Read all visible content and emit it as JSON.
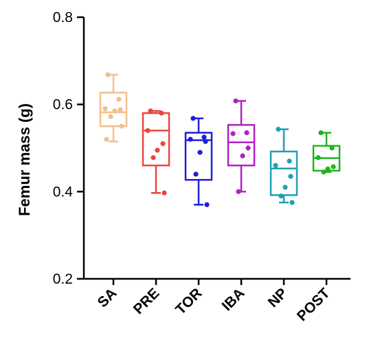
{
  "chart_data": {
    "type": "box",
    "ylabel": "Femur mass (g)",
    "ylim": [
      0.2,
      0.8
    ],
    "yticks": [
      "0.2",
      "0.4",
      "0.6",
      "0.8"
    ],
    "categories": [
      "SA",
      "PRE",
      "TOR",
      "IBA",
      "NP",
      "POST"
    ],
    "colors": [
      "#f2c08a",
      "#e8473e",
      "#1f1fd6",
      "#b020c4",
      "#1ea0b5",
      "#21b41f"
    ],
    "boxes": [
      {
        "min": 0.515,
        "q1": 0.55,
        "median": 0.582,
        "q3": 0.627,
        "max": 0.668,
        "points": [
          0.668,
          0.612,
          0.59,
          0.588,
          0.585,
          0.572,
          0.55,
          0.52
        ]
      },
      {
        "min": 0.397,
        "q1": 0.46,
        "median": 0.54,
        "q3": 0.58,
        "max": 0.585,
        "points": [
          0.585,
          0.58,
          0.54,
          0.51,
          0.495,
          0.478,
          0.397
        ]
      },
      {
        "min": 0.37,
        "q1": 0.427,
        "median": 0.518,
        "q3": 0.535,
        "max": 0.568,
        "points": [
          0.568,
          0.525,
          0.52,
          0.515,
          0.49,
          0.44,
          0.37
        ]
      },
      {
        "min": 0.4,
        "q1": 0.46,
        "median": 0.513,
        "q3": 0.553,
        "max": 0.608,
        "points": [
          0.608,
          0.535,
          0.533,
          0.5,
          0.482,
          0.4
        ]
      },
      {
        "min": 0.375,
        "q1": 0.392,
        "median": 0.453,
        "q3": 0.492,
        "max": 0.543,
        "points": [
          0.543,
          0.47,
          0.46,
          0.435,
          0.41,
          0.39,
          0.375
        ]
      },
      {
        "min": 0.445,
        "q1": 0.448,
        "median": 0.477,
        "q3": 0.505,
        "max": 0.535,
        "points": [
          0.535,
          0.5,
          0.478,
          0.457,
          0.452,
          0.445
        ]
      }
    ]
  }
}
